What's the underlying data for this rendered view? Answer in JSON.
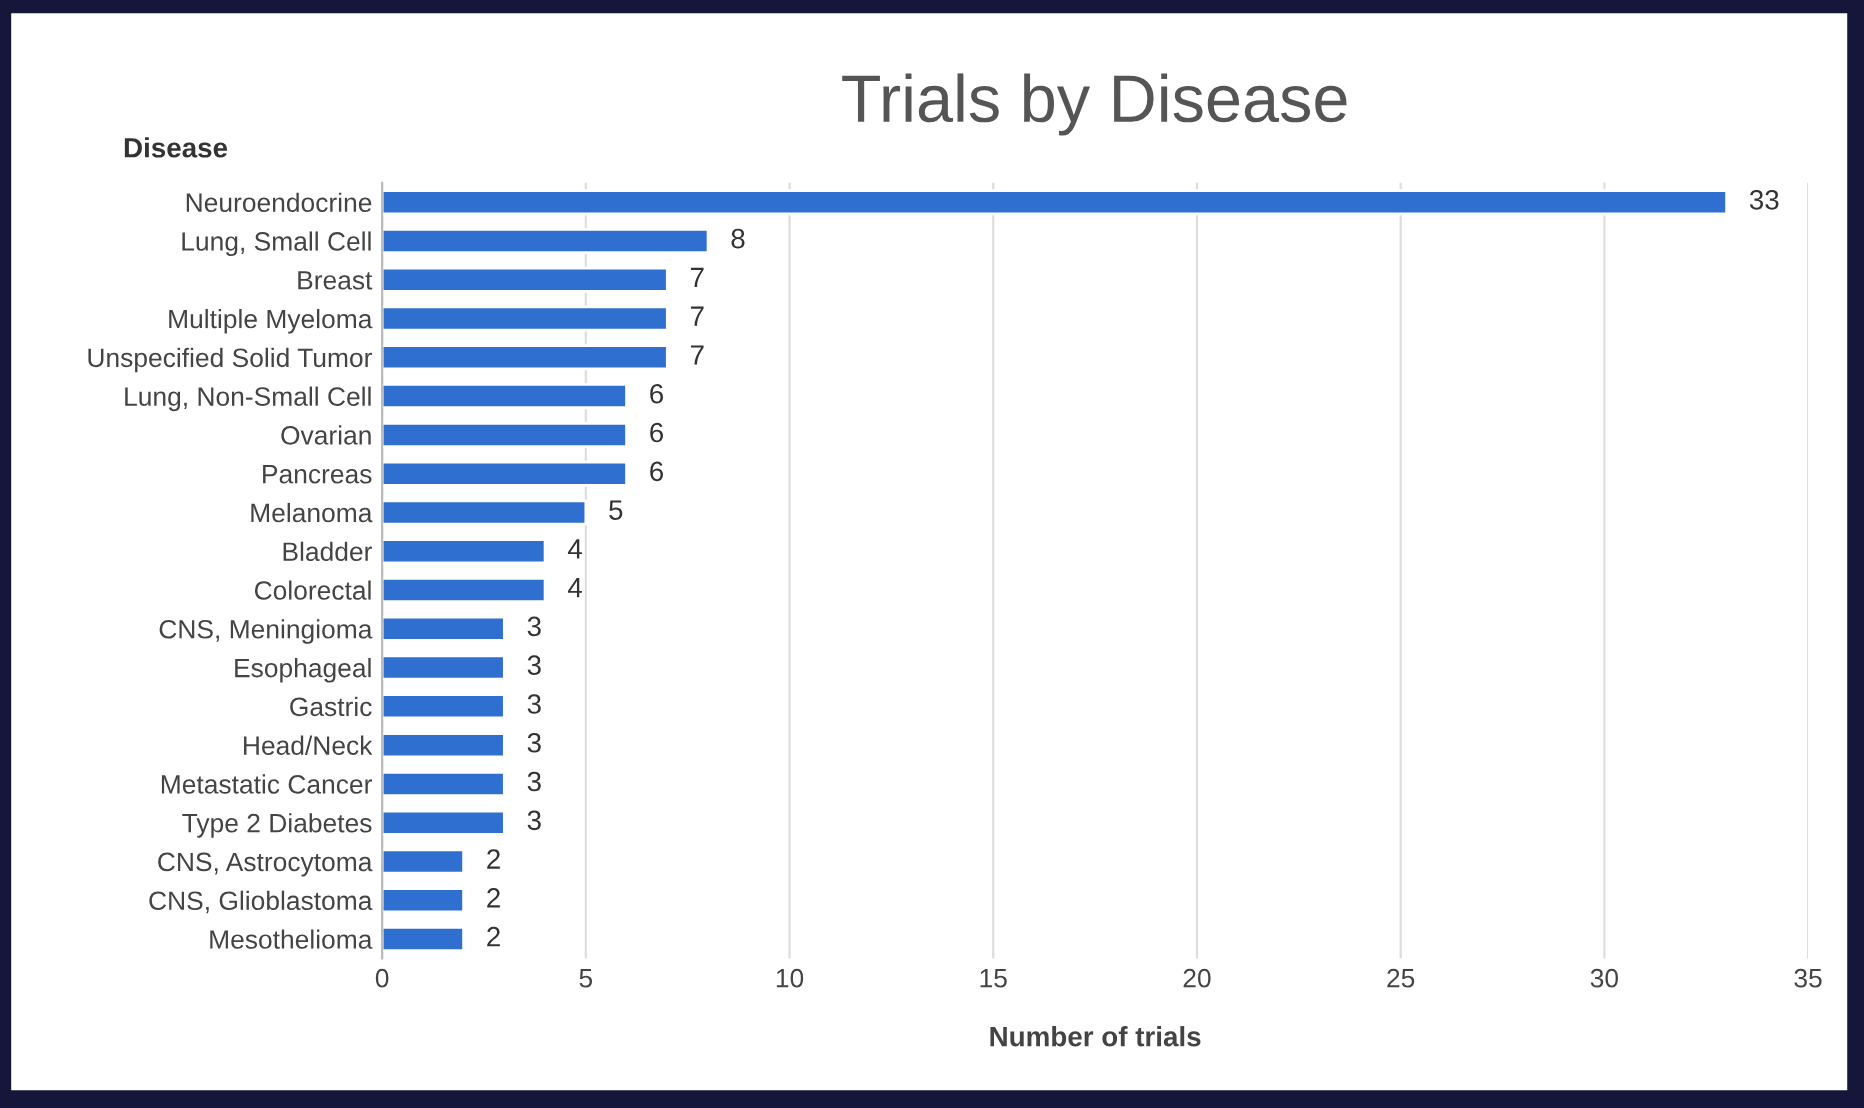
{
  "chart_data": {
    "type": "bar",
    "orientation": "horizontal",
    "title": "Trials by Disease",
    "ylabel": "Disease",
    "xlabel": "Number of trials",
    "categories": [
      "Neuroendocrine",
      "Lung, Small Cell",
      "Breast",
      "Multiple Myeloma",
      "Unspecified Solid Tumor",
      "Lung, Non-Small Cell",
      "Ovarian",
      "Pancreas",
      "Melanoma",
      "Bladder",
      "Colorectal",
      "CNS, Meningioma",
      "Esophageal",
      "Gastric",
      "Head/Neck",
      "Metastatic Cancer",
      "Type 2 Diabetes",
      "CNS, Astrocytoma",
      "CNS, Glioblastoma",
      "Mesothelioma"
    ],
    "values": [
      33,
      8,
      7,
      7,
      7,
      6,
      6,
      6,
      5,
      4,
      4,
      3,
      3,
      3,
      3,
      3,
      3,
      2,
      2,
      2
    ],
    "color": "#2f6fcf",
    "xlim": [
      0,
      35
    ],
    "xticks": [
      0,
      5,
      10,
      15,
      20,
      25,
      30,
      35
    ],
    "grid": "x",
    "data_labels": true,
    "legend": false
  }
}
